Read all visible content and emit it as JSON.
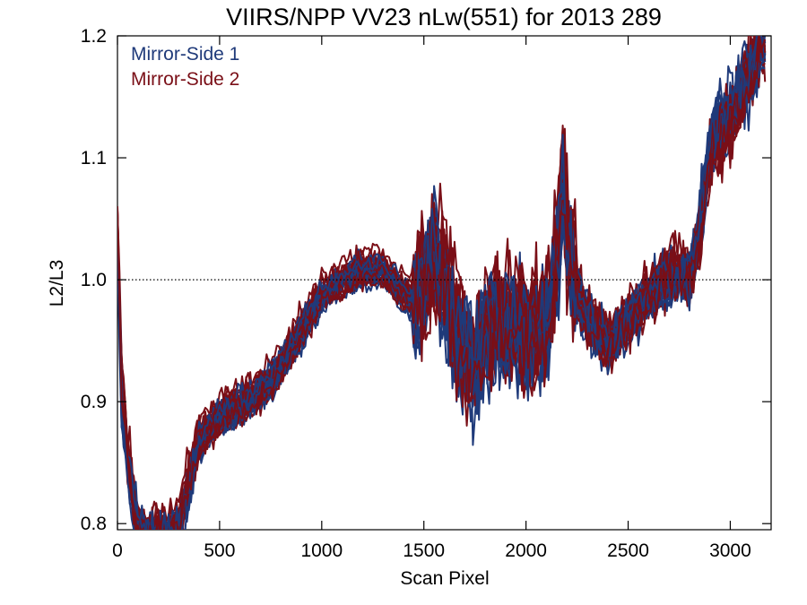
{
  "chart_data": {
    "type": "line",
    "title": "VIIRS/NPP VV23 nLw(551) for 2013 289",
    "xlabel": "Scan Pixel",
    "ylabel": "L2/L3",
    "xlim": [
      0,
      3200
    ],
    "ylim": [
      0.795,
      1.2
    ],
    "xticks": [
      0,
      500,
      1000,
      1500,
      2000,
      2500,
      3000
    ],
    "xtick_labels": [
      "0",
      "500",
      "1000",
      "1500",
      "2000",
      "2500",
      "3000"
    ],
    "yticks": [
      0.8,
      0.9,
      1.0,
      1.1,
      1.2
    ],
    "ytick_labels": [
      "0.8",
      "0.9",
      "1.0",
      "1.1",
      "1.2"
    ],
    "reference_line": {
      "y": 1.0,
      "style": "dotted"
    },
    "legend_position": "top-left",
    "series": [
      {
        "name": "Mirror-Side 1",
        "color": "#1f3a7a",
        "line_count": 16,
        "x": [
          0,
          20,
          50,
          100,
          150,
          200,
          250,
          300,
          350,
          400,
          450,
          500,
          600,
          700,
          800,
          900,
          1000,
          1100,
          1200,
          1300,
          1350,
          1400,
          1450,
          1500,
          1550,
          1600,
          1650,
          1700,
          1750,
          1800,
          1850,
          1900,
          1950,
          2000,
          2050,
          2100,
          2150,
          2180,
          2200,
          2250,
          2300,
          2350,
          2400,
          2450,
          2500,
          2550,
          2600,
          2650,
          2700,
          2750,
          2800,
          2850,
          2900,
          2950,
          3000,
          3050,
          3100,
          3150
        ],
        "y": [
          1.04,
          0.9,
          0.85,
          0.8,
          0.79,
          0.79,
          0.79,
          0.8,
          0.83,
          0.87,
          0.88,
          0.89,
          0.9,
          0.91,
          0.93,
          0.96,
          0.99,
          1.0,
          1.01,
          1.01,
          1.0,
          0.99,
          0.98,
          1.0,
          1.03,
          1.0,
          0.96,
          0.95,
          0.93,
          0.96,
          0.97,
          0.96,
          0.97,
          0.95,
          0.96,
          0.97,
          1.02,
          1.08,
          1.03,
          0.99,
          0.97,
          0.96,
          0.95,
          0.96,
          0.97,
          0.98,
          0.99,
          1.0,
          1.0,
          1.01,
          1.0,
          1.05,
          1.11,
          1.13,
          1.14,
          1.16,
          1.17,
          1.2
        ]
      },
      {
        "name": "Mirror-Side 2",
        "color": "#7a0f17",
        "line_count": 16,
        "x": [
          0,
          20,
          50,
          100,
          150,
          200,
          250,
          300,
          350,
          400,
          450,
          500,
          600,
          700,
          800,
          900,
          1000,
          1100,
          1200,
          1300,
          1350,
          1400,
          1450,
          1500,
          1550,
          1600,
          1650,
          1700,
          1750,
          1800,
          1850,
          1900,
          1950,
          2000,
          2050,
          2100,
          2150,
          2180,
          2200,
          2250,
          2300,
          2350,
          2400,
          2450,
          2500,
          2550,
          2600,
          2650,
          2700,
          2750,
          2800,
          2850,
          2900,
          2950,
          3000,
          3050,
          3100,
          3150
        ],
        "y": [
          1.05,
          0.92,
          0.86,
          0.8,
          0.79,
          0.8,
          0.79,
          0.8,
          0.84,
          0.87,
          0.88,
          0.89,
          0.9,
          0.91,
          0.93,
          0.96,
          0.99,
          1.0,
          1.01,
          1.01,
          1.0,
          0.99,
          0.99,
          1.0,
          1.02,
          1.01,
          0.97,
          0.95,
          0.94,
          0.96,
          0.97,
          0.96,
          0.97,
          0.96,
          0.96,
          0.97,
          1.02,
          1.1,
          1.04,
          0.99,
          0.97,
          0.96,
          0.95,
          0.96,
          0.97,
          0.98,
          0.99,
          1.0,
          1.01,
          1.01,
          1.0,
          1.04,
          1.1,
          1.12,
          1.13,
          1.15,
          1.17,
          1.2
        ]
      }
    ]
  }
}
